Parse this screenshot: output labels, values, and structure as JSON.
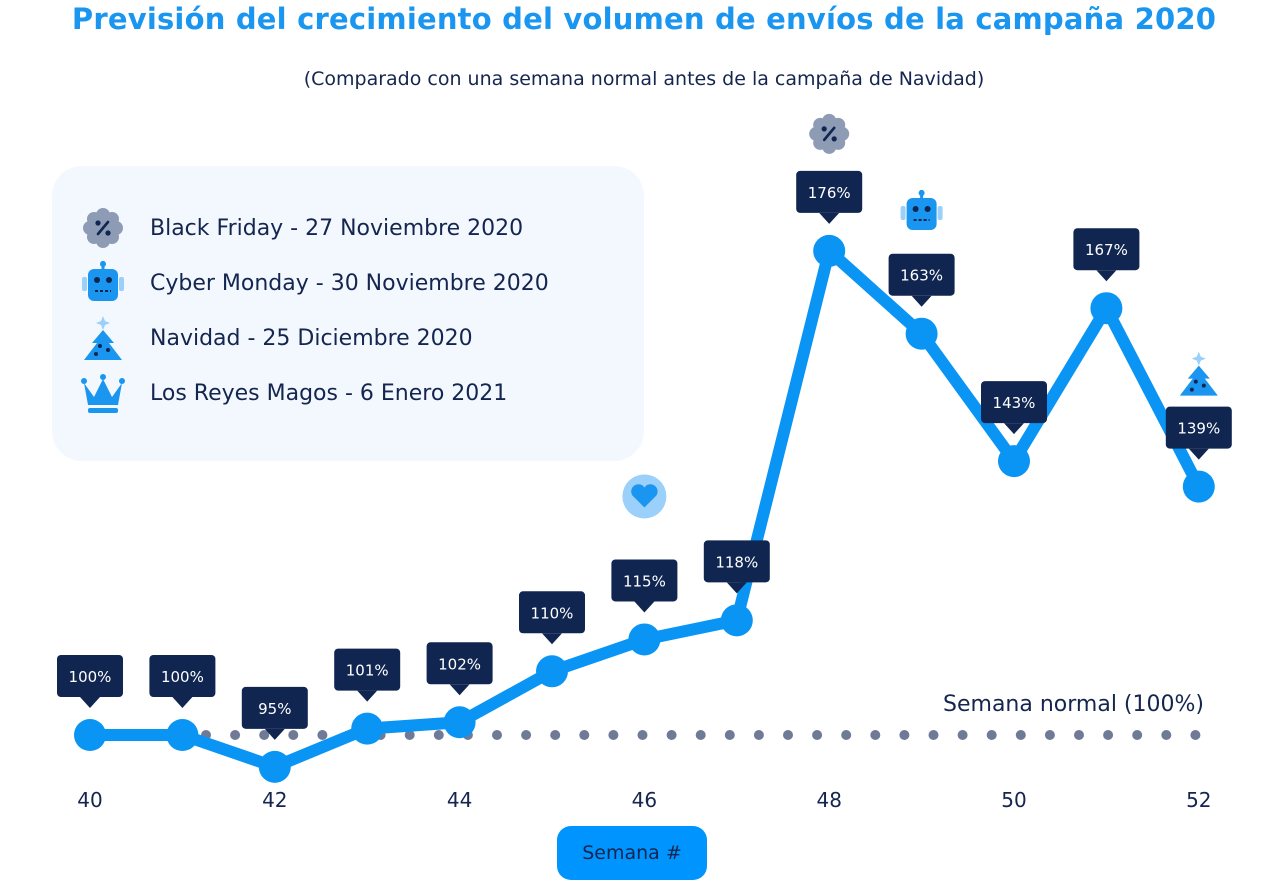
{
  "chart_data": {
    "type": "line",
    "title": "Previsión del crecimiento del volumen de envíos de la campaña 2020",
    "subtitle": "(Comparado con una semana normal antes de la campaña de Navidad)",
    "xlabel": "Semana #",
    "x": [
      40,
      41,
      42,
      43,
      44,
      45,
      46,
      47,
      48,
      49,
      50,
      51,
      52
    ],
    "x_tick_labels": [
      "40",
      "42",
      "44",
      "46",
      "48",
      "50",
      "52"
    ],
    "x_ticks": [
      40,
      42,
      44,
      46,
      48,
      50,
      52
    ],
    "series": [
      {
        "values": [
          100,
          100,
          95,
          101,
          102,
          110,
          115,
          118,
          176,
          163,
          143,
          167,
          139
        ],
        "labels": [
          "100%",
          "100%",
          "95%",
          "101%",
          "102%",
          "110%",
          "115%",
          "118%",
          "176%",
          "163%",
          "143%",
          "167%",
          "139%"
        ]
      }
    ],
    "baseline": {
      "value": 100,
      "label": "Semana normal (100%)",
      "style": "dotted"
    },
    "grid": false,
    "legend_position": "top-left",
    "colors": {
      "line": "#0a95f5",
      "label_bg": "#102650",
      "dots": "#6f7a96",
      "title": "#1a96f0",
      "text": "#14254f"
    },
    "event_markers": [
      {
        "week": 46,
        "icon": "heart-icon"
      },
      {
        "week": 48,
        "icon": "black-friday-icon"
      },
      {
        "week": 49,
        "icon": "robot-icon"
      },
      {
        "week": 52,
        "icon": "tree-icon"
      }
    ]
  },
  "legend": {
    "items": [
      {
        "icon": "black-friday-icon",
        "label": "Black Friday - 27 Noviembre 2020"
      },
      {
        "icon": "robot-icon",
        "label": "Cyber Monday - 30 Noviembre 2020"
      },
      {
        "icon": "tree-icon",
        "label": "Navidad - 25 Diciembre 2020"
      },
      {
        "icon": "crown-icon",
        "label": "Los Reyes Magos - 6 Enero 2021"
      }
    ]
  }
}
